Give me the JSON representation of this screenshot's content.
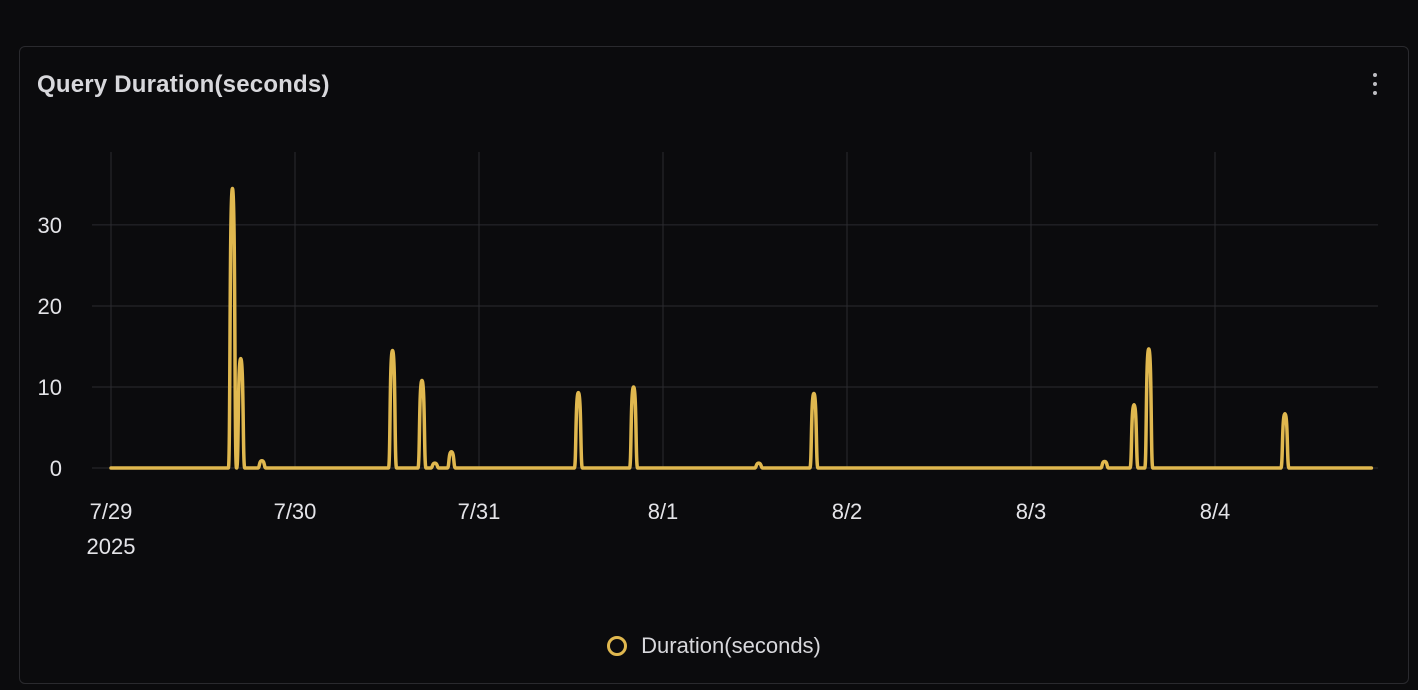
{
  "panel": {
    "title": "Query Duration(seconds)",
    "menu_icon": "vertical-ellipsis-icon"
  },
  "chart_data": {
    "type": "line",
    "title": "Query Duration(seconds)",
    "xlabel": "",
    "ylabel": "",
    "x_unit": "days since 7/29 2025 00:00",
    "xlim": [
      0,
      6.85
    ],
    "ylim": [
      0,
      39
    ],
    "yticks": [
      0,
      10,
      20,
      30
    ],
    "xticks": [
      {
        "x": 0,
        "label": "7/29",
        "sublabel": "2025"
      },
      {
        "x": 1,
        "label": "7/30",
        "sublabel": ""
      },
      {
        "x": 2,
        "label": "7/31",
        "sublabel": ""
      },
      {
        "x": 3,
        "label": "8/1",
        "sublabel": ""
      },
      {
        "x": 4,
        "label": "8/2",
        "sublabel": ""
      },
      {
        "x": 5,
        "label": "8/3",
        "sublabel": ""
      },
      {
        "x": 6,
        "label": "8/4",
        "sublabel": ""
      }
    ],
    "grid": true,
    "legend_position": "bottom-center",
    "series": [
      {
        "name": "Duration(seconds)",
        "color": "#e0b84f",
        "baseline": 0,
        "peaks": [
          {
            "x": 0.66,
            "y": 34.5
          },
          {
            "x": 0.705,
            "y": 13.5
          },
          {
            "x": 0.82,
            "y": 0.9
          },
          {
            "x": 1.53,
            "y": 14.5
          },
          {
            "x": 1.69,
            "y": 10.8
          },
          {
            "x": 1.76,
            "y": 0.6
          },
          {
            "x": 1.85,
            "y": 2.0
          },
          {
            "x": 2.54,
            "y": 9.3
          },
          {
            "x": 2.84,
            "y": 10.0
          },
          {
            "x": 3.52,
            "y": 0.6
          },
          {
            "x": 3.82,
            "y": 9.2
          },
          {
            "x": 5.4,
            "y": 0.8
          },
          {
            "x": 5.56,
            "y": 7.8
          },
          {
            "x": 5.64,
            "y": 14.7
          },
          {
            "x": 6.38,
            "y": 6.7
          }
        ]
      }
    ]
  },
  "legend": {
    "label": "Duration(seconds)",
    "color": "#e0b84f"
  }
}
